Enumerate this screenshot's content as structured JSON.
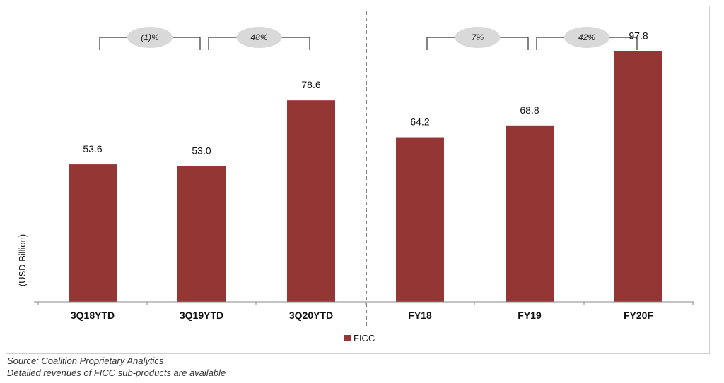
{
  "chart_data": {
    "type": "bar",
    "categories": [
      "3Q18YTD",
      "3Q19YTD",
      "3Q20YTD",
      "FY18",
      "FY19",
      "FY20F"
    ],
    "series": [
      {
        "name": "FICC",
        "values": [
          53.6,
          53.0,
          78.6,
          64.2,
          68.8,
          97.8
        ]
      }
    ],
    "data_labels": [
      "53.6",
      "53.0",
      "78.6",
      "64.2",
      "68.8",
      "97.8"
    ],
    "ylabel": "(USD Billion)",
    "ylim": [
      0,
      110
    ],
    "grid": false,
    "legend": "bottom-center",
    "colors": {
      "bar": "#943634",
      "bracket": "#333333",
      "bubble": "#d9d9d9",
      "divider": "#333333"
    },
    "growth_annotations": [
      {
        "label": "(1)%",
        "from": 0,
        "to": 1
      },
      {
        "label": "48%",
        "from": 1,
        "to": 2
      },
      {
        "label": "7%",
        "from": 3,
        "to": 4
      },
      {
        "label": "42%",
        "from": 4,
        "to": 5
      }
    ],
    "divider_after_index": 2
  },
  "footnotes": {
    "source": "Source: Coalition Proprietary Analytics",
    "detail": "Detailed revenues of FICC sub-products are available"
  }
}
